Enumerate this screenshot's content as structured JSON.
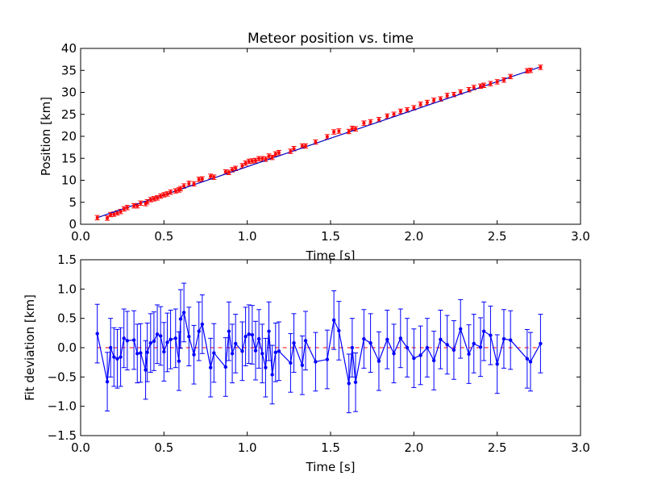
{
  "chart_data": [
    {
      "type": "scatter",
      "title": "Meteor position vs. time",
      "xlabel": "Time [s]",
      "ylabel": "Position [km]",
      "xlim": [
        0.0,
        3.0
      ],
      "ylim": [
        0,
        40
      ],
      "xticks": [
        "0.0",
        "0.5",
        "1.0",
        "1.5",
        "2.0",
        "2.5",
        "3.0"
      ],
      "yticks": [
        "0",
        "5",
        "10",
        "15",
        "20",
        "25",
        "30",
        "35",
        "40"
      ],
      "fit_line": {
        "x": [
          0.1,
          2.76
        ],
        "y": [
          1.5,
          35.8
        ],
        "color": "#0000bf"
      },
      "point_color": "#ff0000",
      "error": 0.5,
      "x": [
        0.1,
        0.16,
        0.18,
        0.2,
        0.22,
        0.24,
        0.26,
        0.28,
        0.32,
        0.34,
        0.36,
        0.39,
        0.4,
        0.42,
        0.44,
        0.46,
        0.48,
        0.5,
        0.52,
        0.54,
        0.57,
        0.59,
        0.6,
        0.62,
        0.65,
        0.68,
        0.71,
        0.73,
        0.78,
        0.8,
        0.87,
        0.89,
        0.91,
        0.93,
        0.97,
        0.99,
        1.01,
        1.03,
        1.05,
        1.07,
        1.09,
        1.11,
        1.13,
        1.15,
        1.17,
        1.19,
        1.26,
        1.28,
        1.33,
        1.35,
        1.41,
        1.48,
        1.52,
        1.55,
        1.61,
        1.63,
        1.65,
        1.7,
        1.74,
        1.79,
        1.84,
        1.88,
        1.92,
        1.96,
        2.0,
        2.04,
        2.08,
        2.12,
        2.16,
        2.2,
        2.24,
        2.28,
        2.33,
        2.36,
        2.4,
        2.42,
        2.46,
        2.5,
        2.54,
        2.58,
        2.68,
        2.7,
        2.76
      ],
      "y": [
        1.5,
        1.4,
        2.2,
        2.3,
        2.6,
        2.9,
        3.5,
        3.8,
        4.2,
        4.2,
        4.8,
        4.7,
        5.1,
        5.6,
        5.8,
        6.0,
        6.4,
        6.7,
        6.9,
        7.3,
        7.6,
        7.8,
        8.1,
        8.7,
        9.3,
        9.2,
        10.2,
        10.3,
        10.9,
        10.7,
        11.9,
        11.8,
        12.4,
        12.7,
        13.3,
        13.9,
        14.3,
        14.4,
        14.5,
        14.9,
        14.9,
        14.8,
        15.5,
        15.2,
        16.0,
        16.3,
        16.6,
        17.2,
        17.8,
        17.8,
        18.7,
        19.9,
        21.0,
        21.2,
        21.1,
        21.8,
        21.7,
        23.0,
        23.3,
        23.8,
        24.6,
        25.0,
        25.7,
        26.0,
        26.5,
        27.3,
        27.7,
        28.2,
        28.5,
        29.3,
        29.5,
        30.1,
        30.6,
        31.1,
        31.4,
        31.6,
        32.0,
        32.4,
        32.8,
        33.6,
        34.9,
        35.0,
        35.7
      ]
    },
    {
      "type": "line",
      "title": "",
      "xlabel": "Time [s]",
      "ylabel": "Fit deviation [km]",
      "xlim": [
        0.0,
        3.0
      ],
      "ylim": [
        -1.5,
        1.5
      ],
      "xticks": [
        "0.0",
        "0.5",
        "1.0",
        "1.5",
        "2.0",
        "2.5",
        "3.0"
      ],
      "yticks": [
        "−1.5",
        "−1.0",
        "−0.5",
        "0.0",
        "0.5",
        "1.0",
        "1.5"
      ],
      "zero_line_color": "#ff0000",
      "series_color": "#0000ff",
      "error": 0.5,
      "x": [
        0.1,
        0.16,
        0.18,
        0.2,
        0.22,
        0.24,
        0.26,
        0.28,
        0.32,
        0.34,
        0.36,
        0.39,
        0.4,
        0.42,
        0.44,
        0.46,
        0.48,
        0.5,
        0.52,
        0.54,
        0.57,
        0.59,
        0.6,
        0.62,
        0.65,
        0.68,
        0.71,
        0.73,
        0.78,
        0.8,
        0.87,
        0.89,
        0.91,
        0.93,
        0.97,
        0.99,
        1.01,
        1.03,
        1.05,
        1.07,
        1.09,
        1.11,
        1.13,
        1.15,
        1.17,
        1.19,
        1.26,
        1.28,
        1.33,
        1.35,
        1.41,
        1.48,
        1.52,
        1.55,
        1.61,
        1.63,
        1.65,
        1.7,
        1.74,
        1.79,
        1.84,
        1.88,
        1.92,
        1.96,
        2.0,
        2.04,
        2.08,
        2.12,
        2.16,
        2.2,
        2.24,
        2.28,
        2.33,
        2.36,
        2.4,
        2.42,
        2.46,
        2.5,
        2.54,
        2.58,
        2.68,
        2.7,
        2.76
      ],
      "y": [
        0.24,
        -0.58,
        0.0,
        -0.16,
        -0.19,
        -0.16,
        0.16,
        0.12,
        0.13,
        -0.1,
        -0.09,
        -0.38,
        -0.08,
        0.08,
        0.11,
        0.23,
        0.2,
        -0.07,
        0.09,
        0.14,
        0.16,
        -0.23,
        0.49,
        0.6,
        0.19,
        -0.12,
        0.28,
        0.4,
        -0.34,
        -0.09,
        -0.33,
        0.28,
        -0.1,
        0.07,
        -0.06,
        0.19,
        0.23,
        0.22,
        -0.05,
        0.15,
        -0.1,
        -0.34,
        0.28,
        -0.46,
        -0.08,
        -0.06,
        -0.26,
        0.08,
        -0.3,
        0.12,
        -0.24,
        -0.2,
        0.47,
        0.29,
        -0.61,
        0.0,
        -0.59,
        0.15,
        0.08,
        -0.23,
        0.14,
        -0.1,
        0.16,
        0.0,
        -0.18,
        -0.13,
        0.0,
        -0.22,
        0.14,
        0.05,
        -0.04,
        0.32,
        -0.11,
        0.07,
        0.01,
        0.28,
        0.21,
        -0.28,
        0.15,
        0.13,
        -0.19,
        -0.24,
        0.07
      ]
    }
  ]
}
